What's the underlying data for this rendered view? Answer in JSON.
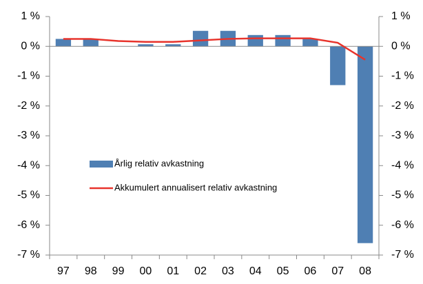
{
  "chart_data": {
    "type": "bar",
    "categories": [
      "97",
      "98",
      "99",
      "00",
      "01",
      "02",
      "03",
      "04",
      "05",
      "06",
      "07",
      "08"
    ],
    "series": [
      {
        "name": "Årlig relativ avkastning",
        "type": "bar",
        "color": "#4f7fb3",
        "values": [
          0.25,
          0.25,
          0,
          0.07,
          0.07,
          0.52,
          0.52,
          0.38,
          0.38,
          0.25,
          -1.3,
          -6.6
        ]
      },
      {
        "name": "Akkumulert annualisert relativ avkastning",
        "type": "line",
        "color": "#e8332b",
        "axis": "y2",
        "values": [
          0.25,
          0.25,
          0.18,
          0.15,
          0.15,
          0.2,
          0.25,
          0.27,
          0.27,
          0.27,
          0.12,
          -0.45
        ]
      }
    ],
    "ylim": [
      -7,
      1
    ],
    "yticks": [
      {
        "value": 1,
        "label": "1 %"
      },
      {
        "value": 0,
        "label": "0 %"
      },
      {
        "value": -1,
        "label": "-1 %"
      },
      {
        "value": -2,
        "label": "-2 %"
      },
      {
        "value": -3,
        "label": "-3 %"
      },
      {
        "value": -4,
        "label": "-4 %"
      },
      {
        "value": -5,
        "label": "-5 %"
      },
      {
        "value": -6,
        "label": "-6 %"
      },
      {
        "value": -7,
        "label": "-7 %"
      }
    ],
    "y2lim": [
      -7,
      1
    ],
    "y2ticks": [
      {
        "value": 1,
        "label": "1 %"
      },
      {
        "value": 0,
        "label": "0 %"
      },
      {
        "value": -1,
        "label": "-1 %"
      },
      {
        "value": -2,
        "label": "-2 %"
      },
      {
        "value": -3,
        "label": "-3 %"
      },
      {
        "value": -4,
        "label": "-4 %"
      },
      {
        "value": -5,
        "label": "-5 %"
      },
      {
        "value": -6,
        "label": "-6 %"
      },
      {
        "value": -7,
        "label": "-7 %"
      }
    ],
    "legend": "center-left"
  }
}
